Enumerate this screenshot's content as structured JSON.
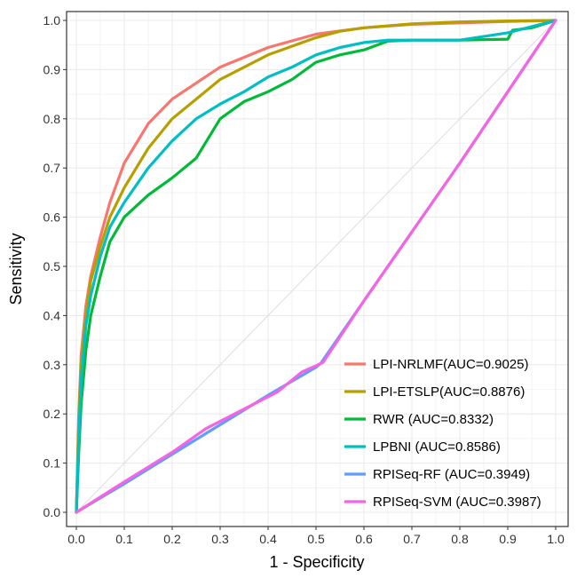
{
  "chart_data": {
    "type": "line",
    "title": "",
    "xlabel": "1 - Specificity",
    "ylabel": "Sensitivity",
    "xlim": [
      0,
      1
    ],
    "ylim": [
      0,
      1
    ],
    "xticks": [
      "0.0",
      "0.1",
      "0.2",
      "0.3",
      "0.4",
      "0.5",
      "0.6",
      "0.7",
      "0.8",
      "0.9",
      "1.0"
    ],
    "yticks": [
      "0.0",
      "0.1",
      "0.2",
      "0.3",
      "0.4",
      "0.5",
      "0.6",
      "0.7",
      "0.8",
      "0.9",
      "1.0"
    ],
    "grid": true,
    "legend_position": "bottom-right",
    "reference_line": {
      "x": [
        0,
        1
      ],
      "y": [
        0,
        1
      ],
      "color": "#dddddd"
    },
    "series": [
      {
        "name": "LPI-NRLMF(AUC=0.9025)",
        "color": "#F8766D",
        "x": [
          0,
          0.005,
          0.01,
          0.02,
          0.03,
          0.05,
          0.07,
          0.1,
          0.15,
          0.2,
          0.3,
          0.4,
          0.5,
          0.6,
          0.7,
          0.8,
          0.9,
          1.0
        ],
        "y": [
          0,
          0.2,
          0.32,
          0.42,
          0.48,
          0.56,
          0.63,
          0.71,
          0.79,
          0.84,
          0.905,
          0.945,
          0.972,
          0.985,
          0.992,
          0.995,
          0.998,
          1.0
        ]
      },
      {
        "name": "LPI-ETSLP(AUC=0.8876)",
        "color": "#B79F00",
        "x": [
          0,
          0.005,
          0.01,
          0.02,
          0.03,
          0.05,
          0.07,
          0.1,
          0.15,
          0.2,
          0.3,
          0.4,
          0.5,
          0.55,
          0.6,
          0.7,
          0.8,
          0.9,
          1.0
        ],
        "y": [
          0,
          0.18,
          0.3,
          0.4,
          0.47,
          0.54,
          0.6,
          0.66,
          0.74,
          0.8,
          0.88,
          0.93,
          0.965,
          0.978,
          0.985,
          0.993,
          0.997,
          0.999,
          1.0
        ]
      },
      {
        "name": "RWR (AUC=0.8332)",
        "color": "#00BA38",
        "x": [
          0,
          0.005,
          0.01,
          0.02,
          0.03,
          0.05,
          0.07,
          0.1,
          0.15,
          0.2,
          0.25,
          0.3,
          0.35,
          0.4,
          0.45,
          0.5,
          0.55,
          0.6,
          0.65,
          0.7,
          0.8,
          0.9,
          0.91,
          0.95,
          1.0
        ],
        "y": [
          0,
          0.12,
          0.22,
          0.33,
          0.4,
          0.48,
          0.55,
          0.6,
          0.645,
          0.68,
          0.72,
          0.8,
          0.835,
          0.855,
          0.88,
          0.915,
          0.93,
          0.94,
          0.958,
          0.96,
          0.96,
          0.962,
          0.98,
          0.985,
          1.0
        ]
      },
      {
        "name": "LPBNI (AUC=0.8586)",
        "color": "#00BFC4",
        "x": [
          0,
          0.005,
          0.01,
          0.02,
          0.03,
          0.05,
          0.07,
          0.1,
          0.15,
          0.2,
          0.25,
          0.3,
          0.35,
          0.4,
          0.45,
          0.5,
          0.55,
          0.6,
          0.65,
          0.7,
          0.8,
          0.9,
          1.0
        ],
        "y": [
          0,
          0.15,
          0.27,
          0.38,
          0.44,
          0.52,
          0.58,
          0.63,
          0.7,
          0.755,
          0.8,
          0.83,
          0.855,
          0.885,
          0.905,
          0.93,
          0.945,
          0.955,
          0.96,
          0.96,
          0.96,
          0.975,
          1.0
        ]
      },
      {
        "name": "RPISeq-RF (AUC=0.3949)",
        "color": "#619CFF",
        "x": [
          0,
          0.1,
          0.2,
          0.3,
          0.4,
          0.5,
          0.51,
          0.6,
          0.7,
          0.8,
          0.9,
          1.0
        ],
        "y": [
          0,
          0.058,
          0.118,
          0.178,
          0.238,
          0.295,
          0.303,
          0.43,
          0.57,
          0.71,
          0.855,
          1.0
        ]
      },
      {
        "name": "RPISeq-SVM (AUC=0.3987)",
        "color": "#F564E3",
        "x": [
          0,
          0.1,
          0.2,
          0.27,
          0.35,
          0.42,
          0.47,
          0.5,
          0.515,
          0.6,
          0.7,
          0.8,
          0.9,
          1.0
        ],
        "y": [
          0,
          0.062,
          0.122,
          0.17,
          0.21,
          0.245,
          0.285,
          0.298,
          0.305,
          0.43,
          0.57,
          0.71,
          0.855,
          1.0
        ]
      }
    ]
  }
}
